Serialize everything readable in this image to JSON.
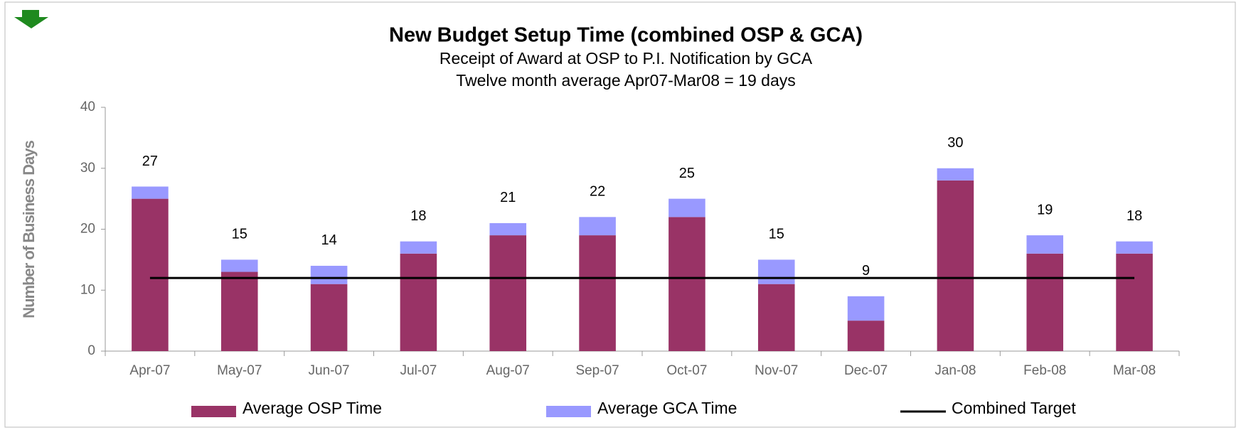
{
  "chart_data": {
    "type": "bar",
    "stacked": true,
    "title": "New Budget Setup Time (combined OSP & GCA)",
    "subtitle": [
      "Receipt of Award at OSP to P.I. Notification by GCA",
      "Twelve month average Apr07-Mar08 = 19 days"
    ],
    "y_label": "Number of Business Days",
    "categories": [
      "Apr-07",
      "May-07",
      "Jun-07",
      "Jul-07",
      "Aug-07",
      "Sep-07",
      "Oct-07",
      "Nov-07",
      "Dec-07",
      "Jan-08",
      "Feb-08",
      "Mar-08"
    ],
    "series": [
      {
        "name": "Average OSP Time",
        "color": "#993366",
        "values": [
          25,
          13,
          11,
          16,
          19,
          19,
          22,
          11,
          5,
          28,
          16,
          16
        ]
      },
      {
        "name": "Average GCA Time",
        "color": "#9999ff",
        "values": [
          2,
          2,
          3,
          2,
          2,
          3,
          3,
          4,
          4,
          2,
          3,
          2
        ]
      },
      {
        "name": "Combined Target",
        "color": "#000000",
        "type": "line",
        "values": [
          12,
          12,
          12,
          12,
          12,
          12,
          12,
          12,
          12,
          12,
          12,
          12
        ]
      }
    ],
    "totals": [
      27,
      15,
      14,
      18,
      21,
      22,
      25,
      15,
      9,
      30,
      19,
      18
    ],
    "ylim": [
      0,
      40
    ],
    "yticks": [
      0,
      10,
      20,
      30,
      40
    ],
    "grid": false,
    "legend": "bottom"
  }
}
